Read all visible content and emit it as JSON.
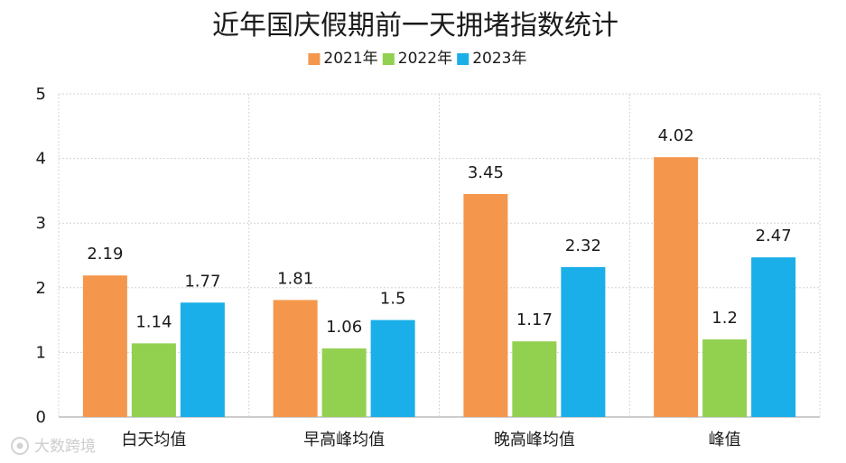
{
  "chart_data": {
    "type": "bar",
    "title": "近年国庆假期前一天拥堵指数统计",
    "categories": [
      "白天均值",
      "早高峰均值",
      "晚高峰均值",
      "峰值"
    ],
    "series": [
      {
        "name": "2021年",
        "color": "#F4974C",
        "values": [
          2.19,
          1.81,
          3.45,
          4.02
        ]
      },
      {
        "name": "2022年",
        "color": "#92D050",
        "values": [
          1.14,
          1.06,
          1.17,
          1.2
        ]
      },
      {
        "name": "2023年",
        "color": "#1AAFE8",
        "values": [
          1.77,
          1.5,
          2.32,
          2.47
        ]
      }
    ],
    "ylim": [
      0,
      5
    ],
    "yticks": [
      0,
      1,
      2,
      3,
      4,
      5
    ],
    "grid": true,
    "legend_position": "top-center"
  },
  "watermark": {
    "text": "大数跨境",
    "icon": "camera-watermark-icon"
  }
}
